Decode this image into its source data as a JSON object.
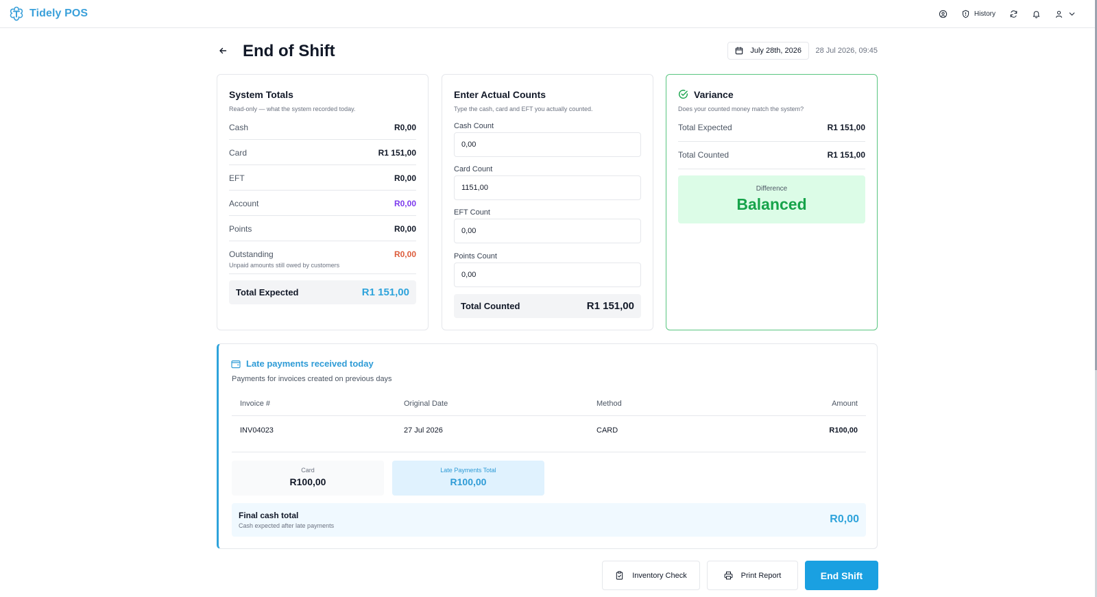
{
  "app": {
    "brand": "Tidely POS",
    "nav": {
      "history_label": "History"
    },
    "colors": {
      "accent": "#1aa0e1",
      "success": "#16a34a",
      "success_bg": "#dcfce7",
      "warning": "#dc5b3a",
      "account": "#7c3aed"
    }
  },
  "header": {
    "title": "End of Shift",
    "date_picker": "July 28th, 2026",
    "timestamp": "28 Jul 2026, 09:45"
  },
  "system_totals": {
    "title": "System Totals",
    "subtitle": "Read-only — what the system recorded today.",
    "rows": [
      {
        "label": "Cash",
        "value": "R0,00"
      },
      {
        "label": "Card",
        "value": "R1 151,00"
      },
      {
        "label": "EFT",
        "value": "R0,00"
      },
      {
        "label": "Account",
        "value": "R0,00"
      },
      {
        "label": "Points",
        "value": "R0,00"
      },
      {
        "label": "Outstanding",
        "value": "R0,00",
        "note": "Unpaid amounts still owed by customers"
      }
    ],
    "total_label": "Total Expected",
    "total_value": "R1 151,00"
  },
  "actual_counts": {
    "title": "Enter Actual Counts",
    "subtitle": "Type the cash, card and EFT you actually counted.",
    "fields": [
      {
        "label": "Cash Count",
        "value": "0,00"
      },
      {
        "label": "Card Count",
        "value": "1151,00"
      },
      {
        "label": "EFT Count",
        "value": "0,00"
      },
      {
        "label": "Points Count",
        "value": "0,00"
      }
    ],
    "total_label": "Total Counted",
    "total_value": "R1 151,00"
  },
  "variance": {
    "title": "Variance",
    "subtitle": "Does your counted money match the system?",
    "rows": [
      {
        "label": "Total Expected",
        "value": "R1 151,00"
      },
      {
        "label": "Total Counted",
        "value": "R1 151,00"
      }
    ],
    "difference_label": "Difference",
    "difference_value": "Balanced"
  },
  "late_payments": {
    "title": "Late payments received today",
    "subtitle": "Payments for invoices created on previous days",
    "columns": [
      "Invoice #",
      "Original Date",
      "Method",
      "Amount"
    ],
    "rows": [
      {
        "invoice": "INV04023",
        "date": "27 Jul 2026",
        "method": "CARD",
        "amount": "R100,00"
      }
    ],
    "summary": [
      {
        "label": "Card",
        "value": "R100,00"
      },
      {
        "label": "Late Payments Total",
        "value": "R100,00"
      }
    ],
    "final_label": "Final cash total",
    "final_sub": "Cash expected after late payments",
    "final_value": "R0,00"
  },
  "actions": {
    "inventory": "Inventory Check",
    "print": "Print Report",
    "end": "End Shift"
  }
}
